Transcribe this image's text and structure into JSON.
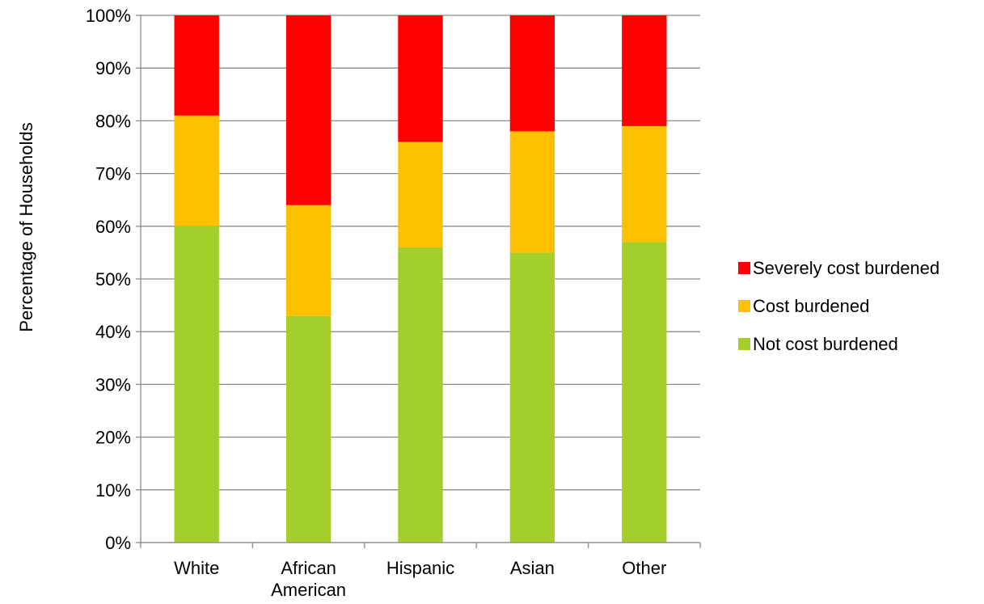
{
  "chart_data": {
    "type": "bar",
    "stacked": true,
    "title": "",
    "xlabel": "",
    "ylabel": "Percentage of Households",
    "ylim": [
      0,
      100
    ],
    "yticks": [
      "0%",
      "10%",
      "20%",
      "30%",
      "40%",
      "50%",
      "60%",
      "70%",
      "80%",
      "90%",
      "100%"
    ],
    "grid": true,
    "legend_position": "right",
    "categories": [
      [
        "White"
      ],
      [
        "African",
        "American"
      ],
      [
        "Hispanic"
      ],
      [
        "Asian"
      ],
      [
        "Other"
      ]
    ],
    "series": [
      {
        "name": "Not cost burdened",
        "color": "#a4cf2a",
        "values": [
          60,
          43,
          56,
          55,
          57
        ]
      },
      {
        "name": "Cost burdened",
        "color": "#ffc000",
        "values": [
          21,
          21,
          20,
          23,
          22
        ]
      },
      {
        "name": "Severely cost burdened",
        "color": "#ff0000",
        "values": [
          19,
          36,
          24,
          22,
          21
        ]
      }
    ]
  }
}
